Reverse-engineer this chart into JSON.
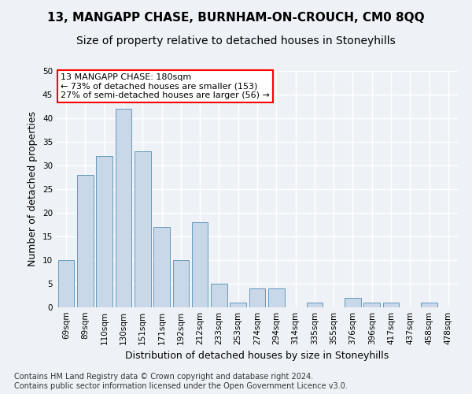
{
  "title": "13, MANGAPP CHASE, BURNHAM-ON-CROUCH, CM0 8QQ",
  "subtitle": "Size of property relative to detached houses in Stoneyhills",
  "xlabel": "Distribution of detached houses by size in Stoneyhills",
  "ylabel": "Number of detached properties",
  "bar_color": "#c8d8e8",
  "bar_edge_color": "#6699bb",
  "categories": [
    "69sqm",
    "89sqm",
    "110sqm",
    "130sqm",
    "151sqm",
    "171sqm",
    "192sqm",
    "212sqm",
    "233sqm",
    "253sqm",
    "274sqm",
    "294sqm",
    "314sqm",
    "335sqm",
    "355sqm",
    "376sqm",
    "396sqm",
    "417sqm",
    "437sqm",
    "458sqm",
    "478sqm"
  ],
  "values": [
    10,
    28,
    32,
    42,
    33,
    17,
    10,
    18,
    5,
    1,
    4,
    4,
    0,
    1,
    0,
    2,
    1,
    1,
    0,
    1,
    0
  ],
  "ylim": [
    0,
    50
  ],
  "yticks": [
    0,
    5,
    10,
    15,
    20,
    25,
    30,
    35,
    40,
    45,
    50
  ],
  "annotation_text": "13 MANGAPP CHASE: 180sqm\n← 73% of detached houses are smaller (153)\n27% of semi-detached houses are larger (56) →",
  "annotation_box_color": "white",
  "annotation_box_edge_color": "red",
  "footer_line1": "Contains HM Land Registry data © Crown copyright and database right 2024.",
  "footer_line2": "Contains public sector information licensed under the Open Government Licence v3.0.",
  "background_color": "#eef2f7",
  "plot_background_color": "#eef2f7",
  "grid_color": "white",
  "title_fontsize": 11,
  "subtitle_fontsize": 10,
  "ylabel_fontsize": 9,
  "xlabel_fontsize": 9,
  "tick_fontsize": 7.5,
  "annotation_fontsize": 8,
  "footer_fontsize": 7
}
